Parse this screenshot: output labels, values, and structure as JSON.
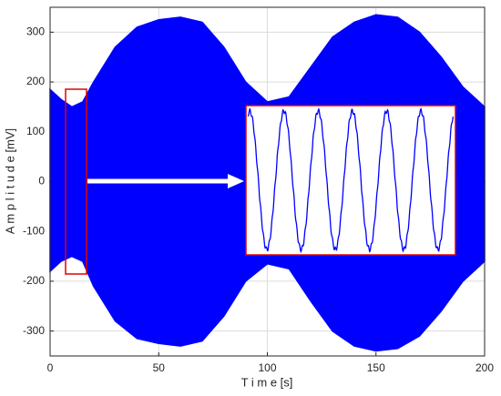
{
  "chart_data": {
    "type": "envelope",
    "color": "#0000ff",
    "grid": true,
    "xlabel": "T i m e [s]",
    "ylabel": "A m p l i t u d e [mV]",
    "xlim": [
      0,
      200
    ],
    "xticks": [
      0,
      50,
      100,
      150,
      200
    ],
    "ylim": [
      -350,
      350
    ],
    "yticks": [
      -300,
      -200,
      -100,
      0,
      100,
      200,
      300
    ],
    "x": [
      0,
      5,
      10,
      15,
      20,
      30,
      40,
      50,
      60,
      70,
      80,
      90,
      100,
      110,
      120,
      130,
      140,
      150,
      160,
      170,
      180,
      190,
      200
    ],
    "upper": [
      185,
      165,
      150,
      160,
      200,
      270,
      310,
      325,
      330,
      320,
      270,
      200,
      160,
      170,
      230,
      290,
      320,
      335,
      330,
      300,
      250,
      190,
      150
    ],
    "lower": [
      -180,
      -160,
      -150,
      -160,
      -210,
      -280,
      -315,
      -325,
      -330,
      -320,
      -270,
      -200,
      -165,
      -175,
      -240,
      -300,
      -330,
      -340,
      -335,
      -310,
      -260,
      -200,
      -160
    ]
  }
}
